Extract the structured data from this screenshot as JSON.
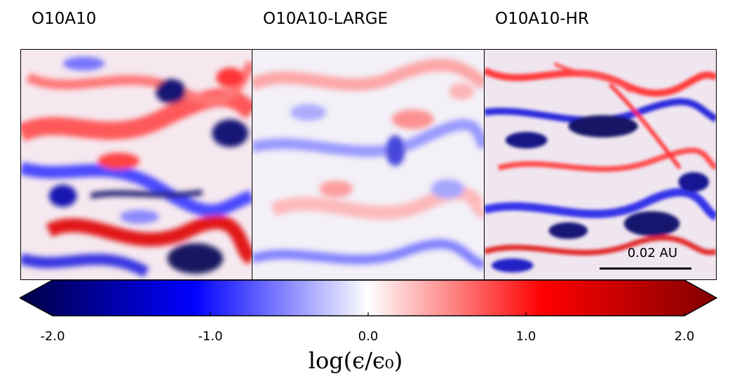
{
  "panels": [
    {
      "title": "O10A10"
    },
    {
      "title": "O10A10-LARGE"
    },
    {
      "title": "O10A10-HR"
    }
  ],
  "scale_bar": {
    "label": "0.02 AU"
  },
  "colorbar": {
    "ticks": [
      "-2.0",
      "-1.0",
      "0.0",
      "1.0",
      "2.0"
    ],
    "label": "log(ϵ/ϵ₀)",
    "colors": {
      "dark_blue": "#000044",
      "blue": "#0000ff",
      "white": "#ffffff",
      "red": "#ff0000",
      "dark_red": "#800000"
    }
  }
}
